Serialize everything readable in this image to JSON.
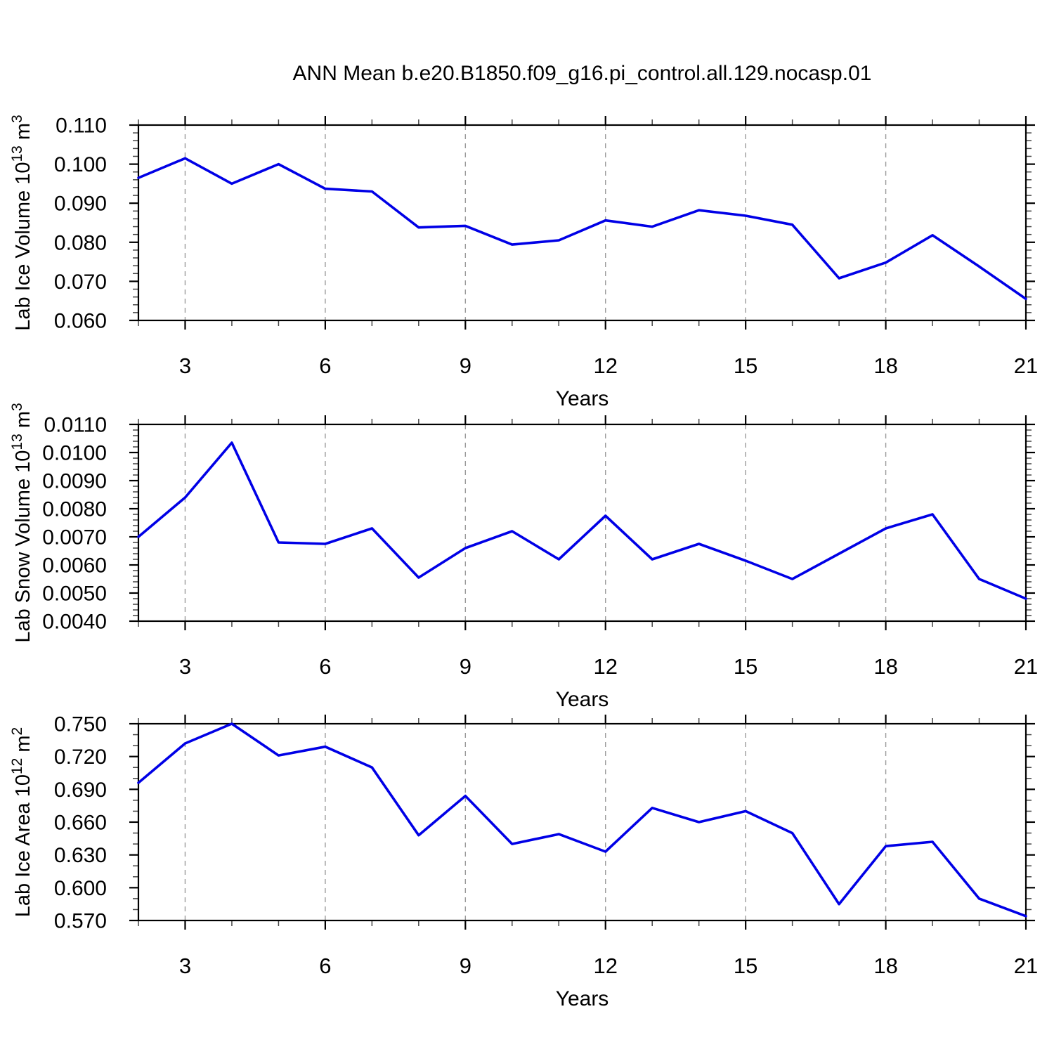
{
  "title": "ANN Mean b.e20.B1850.f09_g16.pi_control.all.129.nocasp.01",
  "colors": {
    "line": "#0000e6",
    "grid": "#9a9a9a",
    "axis": "#000000",
    "minor_tick": "#444444",
    "text": "#000000"
  },
  "chart_data": [
    {
      "type": "line",
      "name": "lab-ice-volume",
      "ylabel_text": "Lab Ice Volume 10^13 m^3",
      "ylabel_segments": [
        {
          "t": "Lab Ice Volume 10"
        },
        {
          "t": "13",
          "sup": true
        },
        {
          "t": " m"
        },
        {
          "t": "3",
          "sup": true
        }
      ],
      "xlabel": "Years",
      "x": [
        2,
        3,
        4,
        5,
        6,
        7,
        8,
        9,
        10,
        11,
        12,
        13,
        14,
        15,
        16,
        17,
        18,
        19,
        20,
        21
      ],
      "values": [
        0.0965,
        0.1015,
        0.095,
        0.1,
        0.0937,
        0.093,
        0.0838,
        0.0842,
        0.0794,
        0.0805,
        0.0856,
        0.084,
        0.0882,
        0.0868,
        0.0845,
        0.0708,
        0.0748,
        0.0818,
        0.0738,
        0.0655
      ],
      "ylim": [
        0.06,
        0.11
      ],
      "ytick_step": 0.01,
      "yminor_step": 0.002,
      "ydecimals": 3,
      "xlim": [
        2,
        21
      ],
      "xticks": [
        3,
        6,
        9,
        12,
        15,
        18,
        21
      ],
      "xminor_step": 1,
      "grid_x": [
        3,
        6,
        9,
        12,
        15,
        18
      ],
      "grid_on": "vertical-dashed",
      "legend": "none"
    },
    {
      "type": "line",
      "name": "lab-snow-volume",
      "ylabel_text": "Lab Snow Volume 10^13 m^3",
      "ylabel_segments": [
        {
          "t": "Lab Snow Volume 10"
        },
        {
          "t": "13",
          "sup": true
        },
        {
          "t": " m"
        },
        {
          "t": "3",
          "sup": true
        }
      ],
      "xlabel": "Years",
      "x": [
        2,
        3,
        4,
        5,
        6,
        7,
        8,
        9,
        10,
        11,
        12,
        13,
        14,
        15,
        16,
        17,
        18,
        19,
        20,
        21
      ],
      "values": [
        0.007,
        0.0084,
        0.01035,
        0.0068,
        0.00675,
        0.0073,
        0.00555,
        0.0066,
        0.0072,
        0.0062,
        0.00775,
        0.0062,
        0.00675,
        0.00615,
        0.0055,
        0.0064,
        0.0073,
        0.0078,
        0.0055,
        0.0048
      ],
      "ylim": [
        0.004,
        0.011
      ],
      "ytick_step": 0.001,
      "yminor_step": 0.0002,
      "ydecimals": 4,
      "xlim": [
        2,
        21
      ],
      "xticks": [
        3,
        6,
        9,
        12,
        15,
        18,
        21
      ],
      "xminor_step": 1,
      "grid_x": [
        3,
        6,
        9,
        12,
        15,
        18
      ],
      "grid_on": "vertical-dashed",
      "legend": "none"
    },
    {
      "type": "line",
      "name": "lab-ice-area",
      "ylabel_text": "Lab Ice Area 10^12 m^2",
      "ylabel_segments": [
        {
          "t": "Lab Ice Area 10"
        },
        {
          "t": "12",
          "sup": true
        },
        {
          "t": " m"
        },
        {
          "t": "2",
          "sup": true
        }
      ],
      "xlabel": "Years",
      "x": [
        2,
        3,
        4,
        5,
        6,
        7,
        8,
        9,
        10,
        11,
        12,
        13,
        14,
        15,
        16,
        17,
        18,
        19,
        20,
        21
      ],
      "values": [
        0.696,
        0.732,
        0.75,
        0.721,
        0.729,
        0.71,
        0.648,
        0.684,
        0.64,
        0.649,
        0.633,
        0.673,
        0.66,
        0.67,
        0.65,
        0.585,
        0.638,
        0.642,
        0.59,
        0.574
      ],
      "ylim": [
        0.57,
        0.75
      ],
      "ytick_step": 0.03,
      "yminor_step": 0.01,
      "ydecimals": 3,
      "xlim": [
        2,
        21
      ],
      "xticks": [
        3,
        6,
        9,
        12,
        15,
        18,
        21
      ],
      "xminor_step": 1,
      "grid_x": [
        3,
        6,
        9,
        12,
        15,
        18
      ],
      "grid_on": "vertical-dashed",
      "legend": "none"
    }
  ]
}
